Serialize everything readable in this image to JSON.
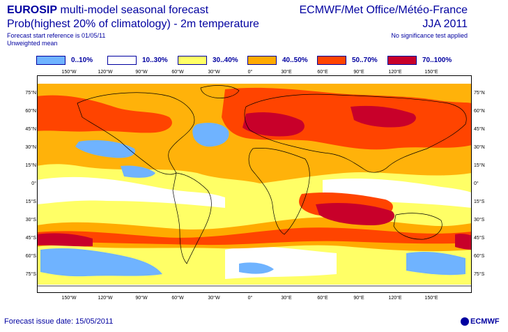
{
  "header": {
    "title_line1": "EUROSIP multi-model seasonal forecast",
    "title_line2": "Prob(highest 20% of climatology) - 2m temperature",
    "small_line1": "Forecast start reference is 01/05/11",
    "small_line2": "Unweighted mean",
    "right_line1": "ECMWF/Met Office/Météo-France",
    "right_line2": "JJA 2011",
    "right_small": "No significance test applied"
  },
  "legend": [
    {
      "label": "0..10%",
      "color": "#6fb3ff"
    },
    {
      "label": "10..30%",
      "color": "#ffffff"
    },
    {
      "label": "30..40%",
      "color": "#ffff66"
    },
    {
      "label": "40..50%",
      "color": "#ffaa00"
    },
    {
      "label": "50..70%",
      "color": "#ff4400"
    },
    {
      "label": "70..100%",
      "color": "#c8002a"
    }
  ],
  "axes": {
    "lon_labels": [
      "150°W",
      "120°W",
      "90°W",
      "60°W",
      "30°W",
      "0°",
      "30°E",
      "60°E",
      "90°E",
      "120°E",
      "150°E"
    ],
    "lat_labels": [
      "75°N",
      "60°N",
      "45°N",
      "30°N",
      "15°N",
      "0°",
      "15°S",
      "30°S",
      "45°S",
      "60°S",
      "75°S"
    ]
  },
  "footer": {
    "issue_date": "Forecast issue date: 15/05/2011",
    "logo": "ECMWF"
  }
}
